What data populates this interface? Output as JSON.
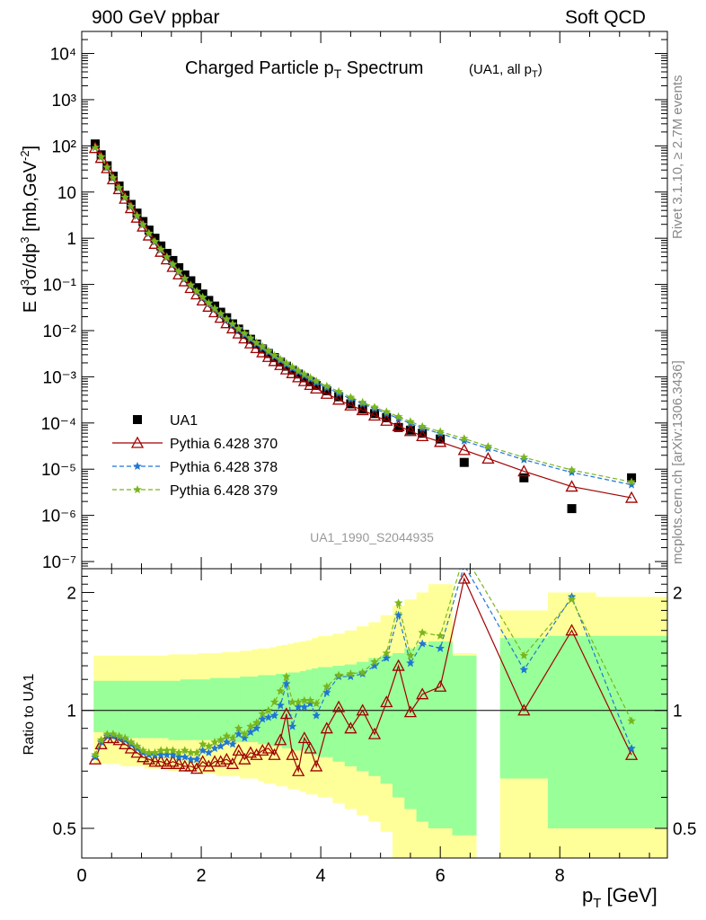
{
  "header": {
    "left": "900 GeV ppbar",
    "right": "Soft QCD"
  },
  "side": {
    "rivet": "Rivet 3.1.10, ≥ 2.7M events",
    "mcplots": "mcplots.cern.ch [arXiv:1306.3436]"
  },
  "chart_data": [
    {
      "type": "scatter",
      "title": "Charged Particle pT Spectrum",
      "title_note": "(UA1, all pT)",
      "ylabel": "E d3σ/dp3 [mb,GeV-2]",
      "analysis_tag": "UA1_1990_S2044935",
      "yscale": "log",
      "ylim": [
        7e-08,
        30000.0
      ],
      "xlim": [
        0,
        9.8
      ],
      "legend_position": "lower-left",
      "x": [
        0.225,
        0.325,
        0.425,
        0.525,
        0.625,
        0.725,
        0.825,
        0.925,
        1.025,
        1.125,
        1.225,
        1.325,
        1.425,
        1.525,
        1.625,
        1.725,
        1.825,
        1.925,
        2.025,
        2.125,
        2.225,
        2.325,
        2.425,
        2.525,
        2.625,
        2.725,
        2.825,
        2.925,
        3.025,
        3.125,
        3.225,
        3.325,
        3.425,
        3.525,
        3.625,
        3.725,
        3.825,
        3.925,
        4.1,
        4.3,
        4.5,
        4.7,
        4.9,
        5.1,
        5.3,
        5.5,
        5.7,
        6.0,
        6.4,
        6.8,
        7.4,
        8.2,
        9.2
      ],
      "series": [
        {
          "name": "UA1",
          "color": "#000000",
          "marker": "square",
          "values": [
            110,
            64,
            37,
            22,
            13.5,
            8.5,
            5.4,
            3.5,
            2.3,
            1.5,
            1.0,
            0.68,
            0.47,
            0.33,
            0.23,
            0.16,
            0.12,
            0.085,
            0.062,
            0.045,
            0.034,
            0.025,
            0.019,
            0.014,
            0.0108,
            0.0083,
            0.0065,
            0.0051,
            0.004,
            0.0032,
            0.0026,
            0.0021,
            0.0017,
            0.0014,
            0.00115,
            0.00095,
            0.00078,
            0.00065,
            0.0005,
            0.00037,
            0.00026,
            0.0002,
            0.00016,
            0.00013,
            8e-05,
            7e-05,
            6e-05,
            4.5e-05,
            1.4e-05,
            null,
            6.5e-06,
            1.4e-06,
            6.5e-06
          ]
        },
        {
          "name": "Pythia 6.428 370",
          "color": "#a00000",
          "marker": "open-triangle",
          "line": "solid",
          "values": [
            90,
            55,
            33,
            19,
            11.6,
            7.2,
            4.5,
            2.8,
            1.8,
            1.15,
            0.76,
            0.51,
            0.35,
            0.24,
            0.165,
            0.117,
            0.084,
            0.061,
            0.045,
            0.033,
            0.025,
            0.019,
            0.0145,
            0.0112,
            0.0087,
            0.0068,
            0.0053,
            0.0042,
            0.0034,
            0.0027,
            0.0022,
            0.0018,
            0.00145,
            0.0012,
            0.00098,
            0.00081,
            0.00067,
            0.00056,
            0.00043,
            0.00032,
            0.00024,
            0.00019,
            0.000145,
            0.000112,
            8.6e-05,
            6.7e-05,
            5.2e-05,
            3.9e-05,
            2.6e-05,
            1.7e-05,
            9e-06,
            4.2e-06,
            2.4e-06
          ]
        },
        {
          "name": "Pythia 6.428 378",
          "color": "#1f77d4",
          "marker": "star",
          "line": "dashed",
          "values": [
            92,
            57,
            34,
            20,
            12.2,
            7.6,
            4.8,
            3.0,
            1.93,
            1.25,
            0.83,
            0.56,
            0.385,
            0.265,
            0.185,
            0.131,
            0.094,
            0.069,
            0.051,
            0.038,
            0.029,
            0.0222,
            0.0171,
            0.0133,
            0.0104,
            0.0082,
            0.0065,
            0.0052,
            0.0042,
            0.0034,
            0.00275,
            0.00225,
            0.00185,
            0.00153,
            0.00127,
            0.00106,
            0.00089,
            0.00075,
            0.00058,
            0.00044,
            0.00033,
            0.00026,
            0.000205,
            0.00016,
            0.000125,
            9.8e-05,
            7.7e-05,
            5.9e-05,
            4.1e-05,
            2.8e-05,
            1.6e-05,
            8.5e-06,
            4.6e-06
          ]
        },
        {
          "name": "Pythia 6.428 379",
          "color": "#7ab51d",
          "marker": "star",
          "line": "dashed",
          "values": [
            93,
            58,
            34.5,
            20.3,
            12.4,
            7.7,
            4.9,
            3.07,
            1.98,
            1.28,
            0.85,
            0.575,
            0.395,
            0.273,
            0.19,
            0.135,
            0.097,
            0.071,
            0.053,
            0.0395,
            0.0302,
            0.0232,
            0.0179,
            0.014,
            0.011,
            0.0087,
            0.0069,
            0.0055,
            0.0045,
            0.0036,
            0.0029,
            0.0024,
            0.00197,
            0.00163,
            0.00136,
            0.00114,
            0.00096,
            0.00081,
            0.00063,
            0.00048,
            0.00036,
            0.00028,
            0.00022,
            0.000175,
            0.000137,
            0.000107,
            8.4e-05,
            6.5e-05,
            4.6e-05,
            3.1e-05,
            1.8e-05,
            9.6e-06,
            5.3e-06
          ]
        }
      ]
    },
    {
      "type": "line",
      "ylabel": "Ratio to UA1",
      "xlabel": "pT [GeV]",
      "yscale": "log",
      "ylim": [
        0.42,
        2.3
      ],
      "xlim": [
        0,
        9.8
      ],
      "reference_line": 1,
      "bands": [
        {
          "color": "#ffff99",
          "edges": [
            0.2,
            0.45,
            0.55,
            0.65,
            0.75,
            0.85,
            0.95,
            1.05,
            1.15,
            1.25,
            1.35,
            1.45,
            1.55,
            1.65,
            1.75,
            1.85,
            1.95,
            2.05,
            2.15,
            2.25,
            2.35,
            2.45,
            2.55,
            2.65,
            2.75,
            2.85,
            2.95,
            3.05,
            3.15,
            3.25,
            3.35,
            3.45,
            3.55,
            3.65,
            3.75,
            3.85,
            3.95,
            4.2,
            4.4,
            4.6,
            4.8,
            5.0,
            5.2,
            5.4,
            5.6,
            5.8,
            6.2,
            6.6,
            7.0,
            7.8,
            8.6,
            9.8
          ],
          "low": [
            0.73,
            0.73,
            0.73,
            0.72,
            0.72,
            0.72,
            0.72,
            0.71,
            0.71,
            0.71,
            0.71,
            0.7,
            0.7,
            0.7,
            0.7,
            0.7,
            0.69,
            0.69,
            0.69,
            0.68,
            0.68,
            0.68,
            0.68,
            0.67,
            0.67,
            0.67,
            0.66,
            0.65,
            0.65,
            0.64,
            0.64,
            0.63,
            0.63,
            0.62,
            0.61,
            0.61,
            0.6,
            0.58,
            0.56,
            0.54,
            0.52,
            0.49,
            0.42,
            0.42,
            0.42,
            0.42,
            0.42,
            null,
            0.42,
            0.42,
            0.42
          ],
          "high": [
            1.38,
            1.38,
            1.38,
            1.38,
            1.38,
            1.38,
            1.38,
            1.38,
            1.38,
            1.38,
            1.38,
            1.39,
            1.39,
            1.39,
            1.39,
            1.39,
            1.4,
            1.4,
            1.4,
            1.4,
            1.41,
            1.41,
            1.41,
            1.42,
            1.42,
            1.43,
            1.44,
            1.44,
            1.45,
            1.46,
            1.47,
            1.48,
            1.49,
            1.5,
            1.51,
            1.53,
            1.55,
            1.57,
            1.6,
            1.64,
            1.68,
            1.75,
            1.85,
            1.92,
            2.0,
            2.1,
            1.4,
            null,
            1.8,
            2.0,
            1.95
          ]
        },
        {
          "color": "#99ff99",
          "edges": [
            0.2,
            0.45,
            0.55,
            0.65,
            0.75,
            0.85,
            0.95,
            1.05,
            1.15,
            1.25,
            1.35,
            1.45,
            1.55,
            1.65,
            1.75,
            1.85,
            1.95,
            2.05,
            2.15,
            2.25,
            2.35,
            2.45,
            2.55,
            2.65,
            2.75,
            2.85,
            2.95,
            3.05,
            3.15,
            3.25,
            3.35,
            3.45,
            3.55,
            3.65,
            3.75,
            3.85,
            3.95,
            4.2,
            4.4,
            4.6,
            4.8,
            5.0,
            5.2,
            5.4,
            5.6,
            5.8,
            6.2,
            6.6,
            7.0,
            7.8,
            8.6,
            9.8
          ],
          "low": [
            0.88,
            0.85,
            0.85,
            0.85,
            0.85,
            0.85,
            0.85,
            0.85,
            0.85,
            0.85,
            0.85,
            0.84,
            0.84,
            0.84,
            0.84,
            0.84,
            0.84,
            0.84,
            0.84,
            0.84,
            0.84,
            0.84,
            0.83,
            0.83,
            0.83,
            0.83,
            0.82,
            0.82,
            0.81,
            0.81,
            0.8,
            0.8,
            0.79,
            0.79,
            0.78,
            0.77,
            0.76,
            0.74,
            0.72,
            0.7,
            0.68,
            0.65,
            0.6,
            0.56,
            0.52,
            0.5,
            0.48,
            null,
            0.67,
            0.5,
            0.5
          ],
          "high": [
            1.19,
            1.19,
            1.19,
            1.19,
            1.19,
            1.19,
            1.19,
            1.19,
            1.19,
            1.19,
            1.19,
            1.19,
            1.19,
            1.2,
            1.2,
            1.2,
            1.2,
            1.2,
            1.21,
            1.21,
            1.21,
            1.21,
            1.21,
            1.22,
            1.22,
            1.22,
            1.23,
            1.23,
            1.23,
            1.24,
            1.24,
            1.25,
            1.25,
            1.26,
            1.27,
            1.28,
            1.29,
            1.3,
            1.31,
            1.33,
            1.36,
            1.38,
            1.4,
            1.44,
            1.47,
            1.5,
            1.38,
            null,
            1.53,
            1.55,
            1.55
          ]
        }
      ],
      "series": [
        {
          "name": "Pythia 6.428 370",
          "color": "#a00000",
          "x": [
            0.225,
            0.325,
            0.425,
            0.525,
            0.625,
            0.725,
            0.825,
            0.925,
            1.025,
            1.125,
            1.225,
            1.325,
            1.425,
            1.525,
            1.625,
            1.725,
            1.825,
            1.925,
            2.025,
            2.125,
            2.225,
            2.325,
            2.425,
            2.525,
            2.625,
            2.725,
            2.825,
            2.925,
            3.025,
            3.125,
            3.225,
            3.325,
            3.425,
            3.525,
            3.625,
            3.725,
            3.825,
            3.925,
            4.1,
            4.3,
            4.5,
            4.7,
            4.9,
            5.1,
            5.3,
            5.5,
            5.7,
            6.0,
            6.4,
            7.4,
            8.2,
            9.2
          ],
          "values": [
            0.75,
            0.82,
            0.85,
            0.85,
            0.84,
            0.82,
            0.8,
            0.78,
            0.76,
            0.75,
            0.74,
            0.74,
            0.73,
            0.74,
            0.73,
            0.72,
            0.72,
            0.71,
            0.74,
            0.72,
            0.74,
            0.74,
            0.75,
            0.73,
            0.79,
            0.75,
            0.78,
            0.77,
            0.79,
            0.8,
            0.77,
            0.84,
            0.98,
            0.77,
            0.7,
            0.85,
            0.8,
            0.72,
            0.9,
            1.02,
            0.9,
            1.0,
            0.87,
            1.05,
            1.3,
            0.99,
            1.1,
            1.15,
            2.17,
            1.0,
            1.6,
            0.77
          ]
        },
        {
          "name": "Pythia 6.428 378",
          "color": "#1f77d4",
          "x": [
            0.225,
            0.325,
            0.425,
            0.525,
            0.625,
            0.725,
            0.825,
            0.925,
            1.025,
            1.125,
            1.225,
            1.325,
            1.425,
            1.525,
            1.625,
            1.725,
            1.825,
            1.925,
            2.025,
            2.125,
            2.225,
            2.325,
            2.425,
            2.525,
            2.625,
            2.725,
            2.825,
            2.925,
            3.025,
            3.125,
            3.225,
            3.325,
            3.425,
            3.525,
            3.625,
            3.725,
            3.825,
            3.925,
            4.1,
            4.3,
            4.5,
            4.7,
            4.9,
            5.1,
            5.3,
            5.5,
            5.7,
            6.0,
            6.4,
            7.4,
            8.2,
            9.2
          ],
          "values": [
            0.76,
            0.83,
            0.86,
            0.86,
            0.85,
            0.84,
            0.82,
            0.8,
            0.78,
            0.77,
            0.77,
            0.77,
            0.77,
            0.77,
            0.76,
            0.76,
            0.75,
            0.75,
            0.79,
            0.78,
            0.8,
            0.81,
            0.83,
            0.82,
            0.87,
            0.85,
            0.88,
            0.9,
            0.95,
            0.96,
            0.97,
            1.03,
            1.17,
            0.91,
            1.02,
            1.02,
            1.04,
            0.97,
            1.11,
            1.22,
            1.22,
            1.24,
            1.3,
            1.36,
            1.75,
            1.32,
            1.48,
            1.44,
            2.35,
            1.27,
            1.95,
            0.8
          ]
        },
        {
          "name": "Pythia 6.428 379",
          "color": "#7ab51d",
          "x": [
            0.225,
            0.325,
            0.425,
            0.525,
            0.625,
            0.725,
            0.825,
            0.925,
            1.025,
            1.125,
            1.225,
            1.325,
            1.425,
            1.525,
            1.625,
            1.725,
            1.825,
            1.925,
            2.025,
            2.125,
            2.225,
            2.325,
            2.425,
            2.525,
            2.625,
            2.725,
            2.825,
            2.925,
            3.025,
            3.125,
            3.225,
            3.325,
            3.425,
            3.525,
            3.625,
            3.725,
            3.825,
            3.925,
            4.1,
            4.3,
            4.5,
            4.7,
            4.9,
            5.1,
            5.3,
            5.5,
            5.7,
            6.0,
            6.4,
            7.4,
            8.2,
            9.2
          ],
          "values": [
            0.77,
            0.84,
            0.87,
            0.87,
            0.86,
            0.85,
            0.83,
            0.81,
            0.79,
            0.78,
            0.78,
            0.79,
            0.79,
            0.79,
            0.78,
            0.79,
            0.78,
            0.78,
            0.82,
            0.81,
            0.83,
            0.84,
            0.86,
            0.85,
            0.9,
            0.87,
            0.91,
            0.93,
            0.98,
            1.0,
            1.05,
            1.12,
            1.22,
            1.05,
            1.05,
            1.06,
            1.06,
            1.04,
            1.15,
            1.23,
            1.24,
            1.25,
            1.33,
            1.4,
            1.88,
            1.38,
            1.58,
            1.55,
            2.5,
            1.38,
            1.92,
            0.94
          ]
        }
      ]
    }
  ]
}
